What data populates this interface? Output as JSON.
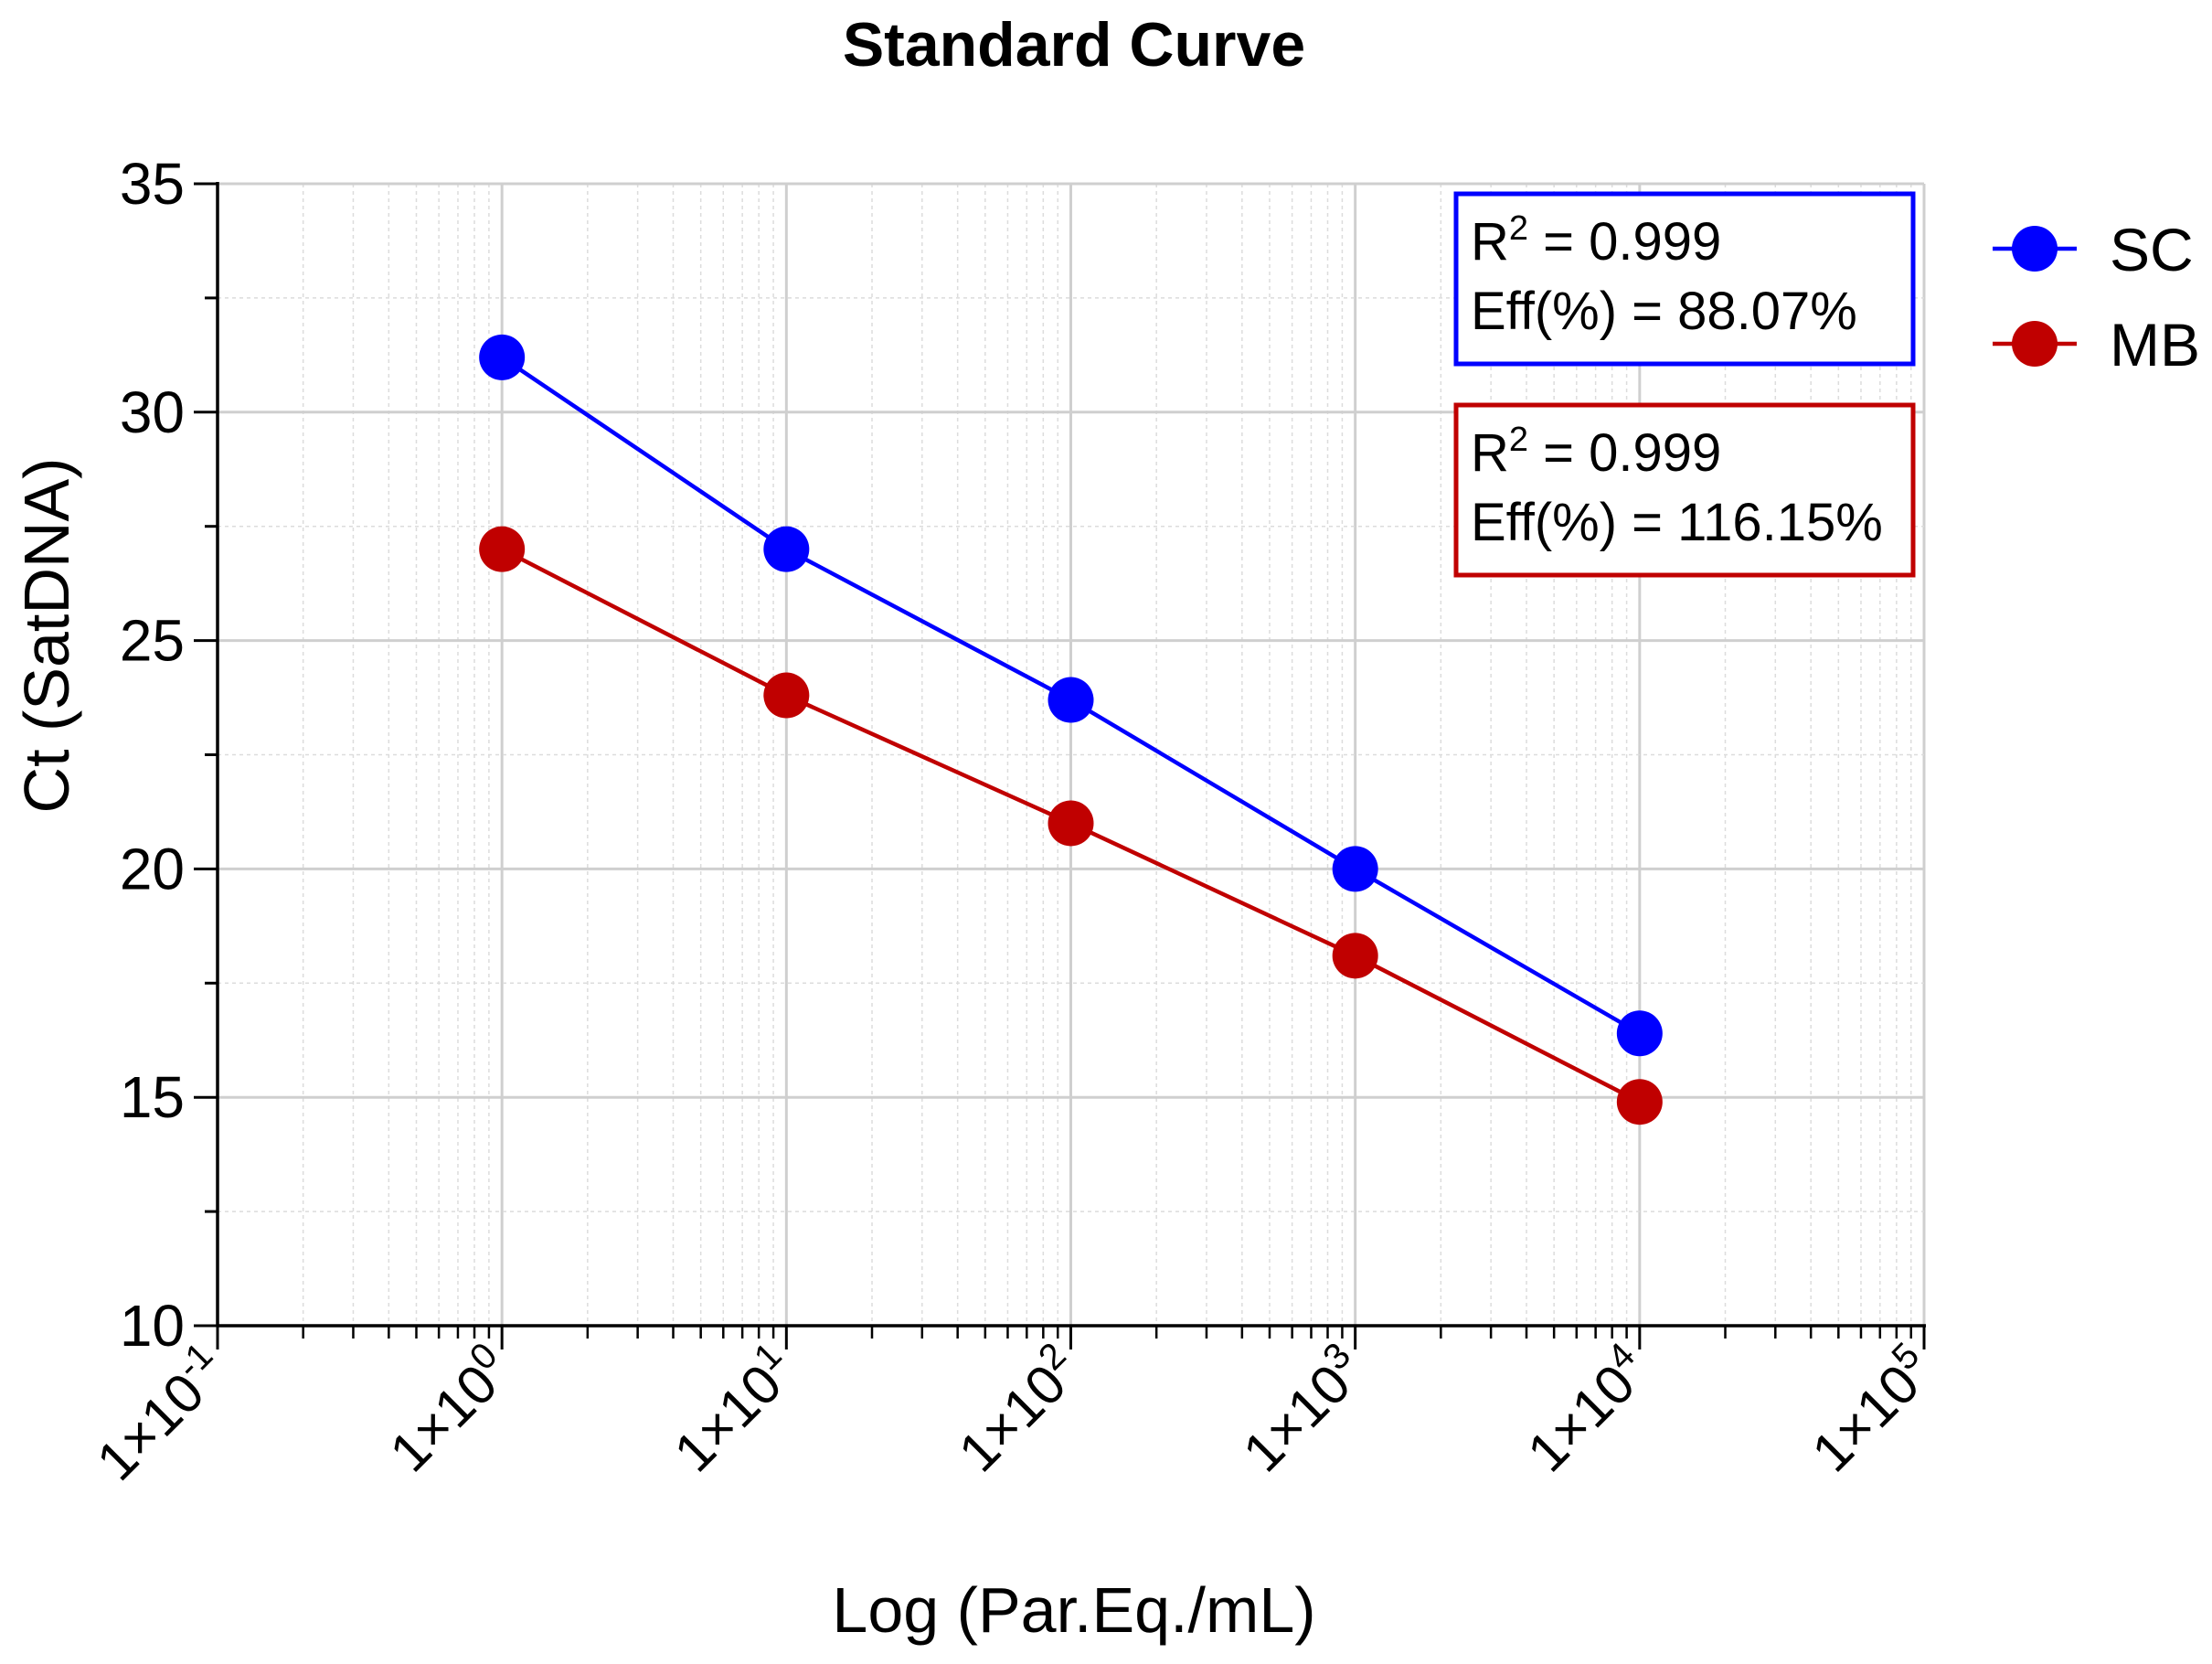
{
  "chart_data": {
    "type": "line",
    "title": "Standard Curve",
    "xlabel": "Log (Par.Eq./mL)",
    "ylabel": "Ct (SatDNA)",
    "x_scale": "log10",
    "xlim_exponents": [
      -1,
      5
    ],
    "ylim": [
      10,
      35
    ],
    "yticks": [
      10,
      15,
      20,
      25,
      30,
      35
    ],
    "xtick_labels": [
      {
        "base": "1×10",
        "exp": "-1"
      },
      {
        "base": "1×10",
        "exp": "0"
      },
      {
        "base": "1×10",
        "exp": "1"
      },
      {
        "base": "1×10",
        "exp": "2"
      },
      {
        "base": "1×10",
        "exp": "3"
      },
      {
        "base": "1×10",
        "exp": "4"
      },
      {
        "base": "1×10",
        "exp": "5"
      }
    ],
    "grid": true,
    "legend_position": "right",
    "series": [
      {
        "name": "SC",
        "color": "#0000ff",
        "x": [
          1,
          10,
          100,
          1000,
          10000
        ],
        "y": [
          31.2,
          27.0,
          23.7,
          20.0,
          16.4
        ],
        "stats": {
          "r2": "R² = 0.999",
          "r2_prefix": "R",
          "r2_sup": "2",
          "r2_suffix": " = 0.999",
          "eff": "Eff(%) = 88.07%"
        },
        "box_color": "#0000ff"
      },
      {
        "name": "MB",
        "color": "#c00000",
        "x": [
          1,
          10,
          100,
          1000,
          10000
        ],
        "y": [
          27.0,
          23.8,
          21.0,
          18.1,
          14.9
        ],
        "stats": {
          "r2": "R² = 0.999",
          "r2_prefix": "R",
          "r2_sup": "2",
          "r2_suffix": " = 0.999",
          "eff": "Eff(%) = 116.15%"
        },
        "box_color": "#c00000"
      }
    ]
  }
}
